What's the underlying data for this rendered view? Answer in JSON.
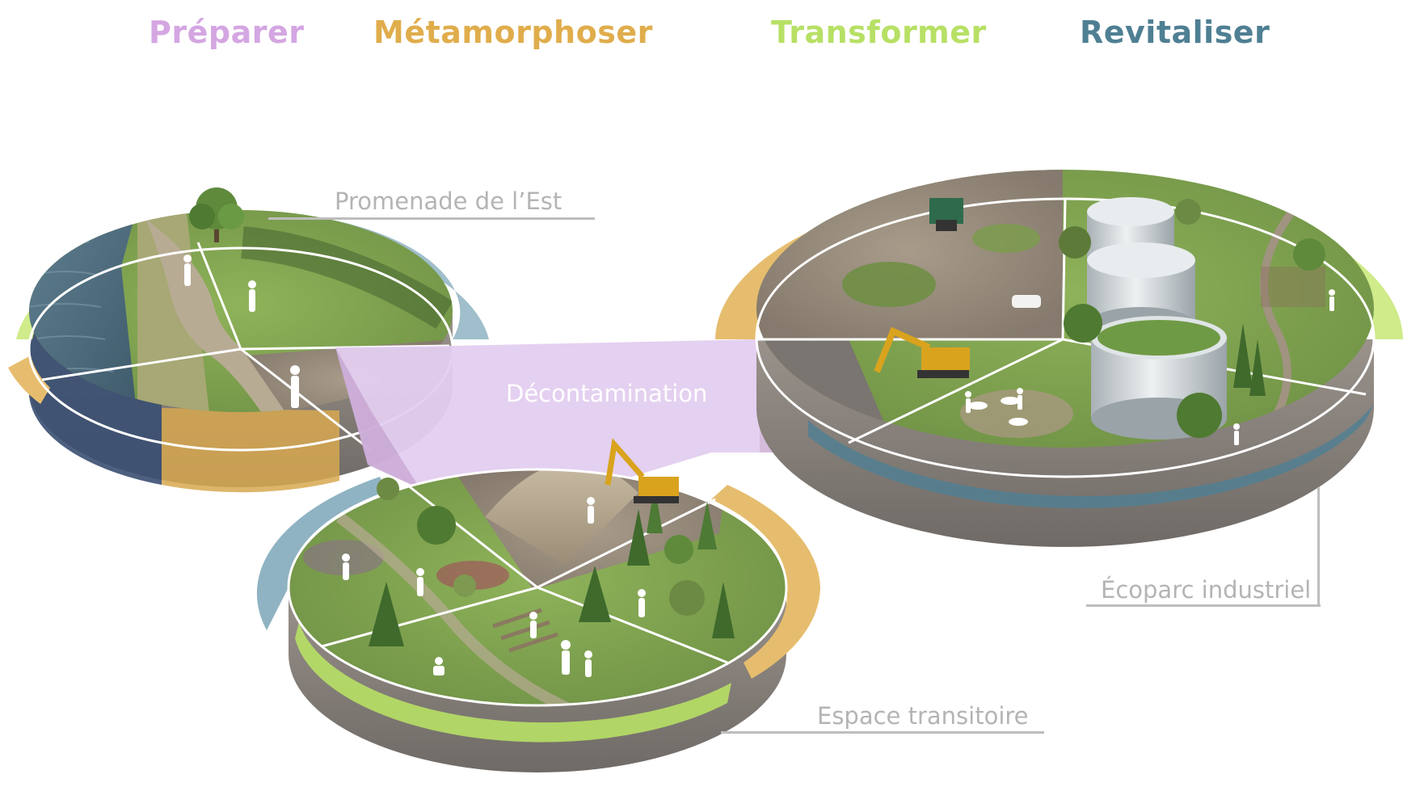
{
  "phases": [
    {
      "label": "Préparer",
      "color": "#d4a6e2"
    },
    {
      "label": "Métamorphoser",
      "color": "#e0ad4c"
    },
    {
      "label": "Transformer",
      "color": "#b7e065"
    },
    {
      "label": "Revitaliser",
      "color": "#4f7f93"
    }
  ],
  "sites": {
    "west": "Promenade de l’Est",
    "center": "Décontamination",
    "east": "Écoparc industriel",
    "south": "Espace transitoire"
  },
  "colors": {
    "preparer": "#e3cdef",
    "metamorphoser": "#e6bd6e",
    "transformer": "#cfeb8a",
    "revitaliser": "#8fb3c2",
    "water": "#4d6e80",
    "grass": "#7ea24e",
    "gravel": "#9c8f80",
    "soil_side": "#8a8480"
  }
}
